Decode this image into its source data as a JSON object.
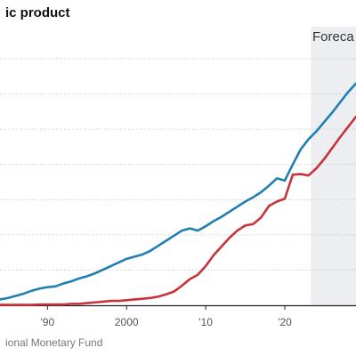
{
  "chart_data": {
    "type": "line",
    "title": "ic product",
    "source": "ional Monetary Fund",
    "forecast_label": "Foreca",
    "forecast_start": 2023.3,
    "xlim": [
      1984,
      2029
    ],
    "ylim": [
      0,
      34
    ],
    "grid": true,
    "x_ticks": [
      {
        "value": 1990,
        "label": "'90"
      },
      {
        "value": 2000,
        "label": "2000"
      },
      {
        "value": 2010,
        "label": "'10"
      },
      {
        "value": 2020,
        "label": "'20"
      }
    ],
    "colors": {
      "series_blue": "#1f7eb3",
      "series_red": "#c8323a",
      "forecast_shade": "#eceef1",
      "grid": "#c4c4c4",
      "axis": "#222222"
    },
    "series": [
      {
        "color": "#1f7eb3",
        "x": [
          1984,
          1985,
          1986,
          1987,
          1988,
          1989,
          1990,
          1991,
          1992,
          1993,
          1994,
          1995,
          1996,
          1997,
          1998,
          1999,
          2000,
          2001,
          2002,
          2003,
          2004,
          2005,
          2006,
          2007,
          2008,
          2009,
          2010,
          2011,
          2012,
          2013,
          2014,
          2015,
          2016,
          2017,
          2018,
          2019,
          2020,
          2021,
          2022,
          2023,
          2024,
          2025,
          2026,
          2027,
          2028,
          2029
        ],
        "values": [
          0.8,
          1.0,
          1.3,
          1.6,
          2.0,
          2.3,
          2.5,
          2.6,
          3.0,
          3.3,
          3.7,
          4.0,
          4.4,
          4.9,
          5.4,
          5.9,
          6.4,
          6.7,
          7.0,
          7.5,
          8.2,
          8.9,
          9.6,
          10.3,
          10.6,
          10.3,
          10.9,
          11.6,
          12.2,
          12.9,
          13.6,
          14.3,
          14.9,
          15.6,
          16.5,
          17.5,
          17.2,
          19.4,
          21.5,
          22.9,
          24.0,
          25.3,
          26.6,
          28.0,
          29.4,
          30.6
        ]
      },
      {
        "color": "#c8323a",
        "x": [
          1984,
          1985,
          1986,
          1987,
          1988,
          1989,
          1990,
          1991,
          1992,
          1993,
          1994,
          1995,
          1996,
          1997,
          1998,
          1999,
          2000,
          2001,
          2002,
          2003,
          2004,
          2005,
          2006,
          2007,
          2008,
          2009,
          2010,
          2011,
          2012,
          2013,
          2014,
          2015,
          2016,
          2017,
          2018,
          2019,
          2020,
          2021,
          2022,
          2023,
          2024,
          2025,
          2026,
          2027,
          2028,
          2029
        ],
        "values": [
          0.05,
          0.05,
          0.05,
          0.05,
          0.05,
          0.1,
          0.1,
          0.1,
          0.1,
          0.2,
          0.2,
          0.3,
          0.4,
          0.5,
          0.6,
          0.6,
          0.7,
          0.8,
          0.9,
          1.0,
          1.2,
          1.5,
          1.9,
          2.7,
          3.6,
          4.2,
          5.4,
          6.9,
          8.1,
          9.3,
          10.3,
          11.0,
          11.2,
          12.1,
          13.7,
          14.3,
          14.7,
          18.0,
          18.1,
          17.9,
          18.9,
          20.2,
          21.7,
          23.2,
          24.6,
          26.0
        ]
      }
    ]
  }
}
